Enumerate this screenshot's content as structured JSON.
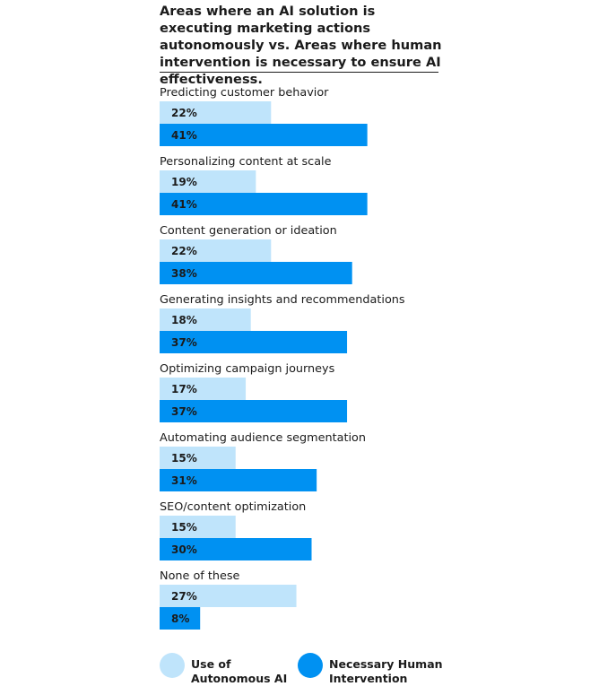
{
  "colors": {
    "autonomous": "#bfe4fb",
    "human": "#0091f2",
    "text": "#1b1b1b"
  },
  "chart_data": {
    "type": "bar",
    "orientation": "horizontal",
    "title": "Areas where an AI solution is executing marketing actions autonomously vs. Areas where human intervention is necessary to ensure AI effectiveness.",
    "categories": [
      "Predicting customer behavior",
      "Personalizing content at scale",
      "Content generation or ideation",
      "Generating insights and recommendations",
      "Optimizing campaign journeys",
      "Automating audience segmentation",
      "SEO/content optimization",
      "None of these"
    ],
    "series": [
      {
        "name": "Use of Autonomous AI",
        "values": [
          22,
          19,
          22,
          18,
          17,
          15,
          15,
          27
        ]
      },
      {
        "name": "Necessary Human Intervention",
        "values": [
          41,
          41,
          38,
          37,
          37,
          31,
          30,
          8
        ]
      }
    ],
    "value_labels": [
      [
        "22%",
        "19%",
        "22%",
        "18%",
        "17%",
        "15%",
        "15%",
        "27%"
      ],
      [
        "41%",
        "41%",
        "38%",
        "37%",
        "37%",
        "31%",
        "30%",
        "8%"
      ]
    ],
    "unit": "%",
    "grid": false,
    "legend_position": "bottom"
  },
  "legend": {
    "autonomous": {
      "line1": "Use of",
      "line2": "Autonomous AI"
    },
    "human": {
      "line1": "Necessary Human",
      "line2": "Intervention"
    }
  }
}
